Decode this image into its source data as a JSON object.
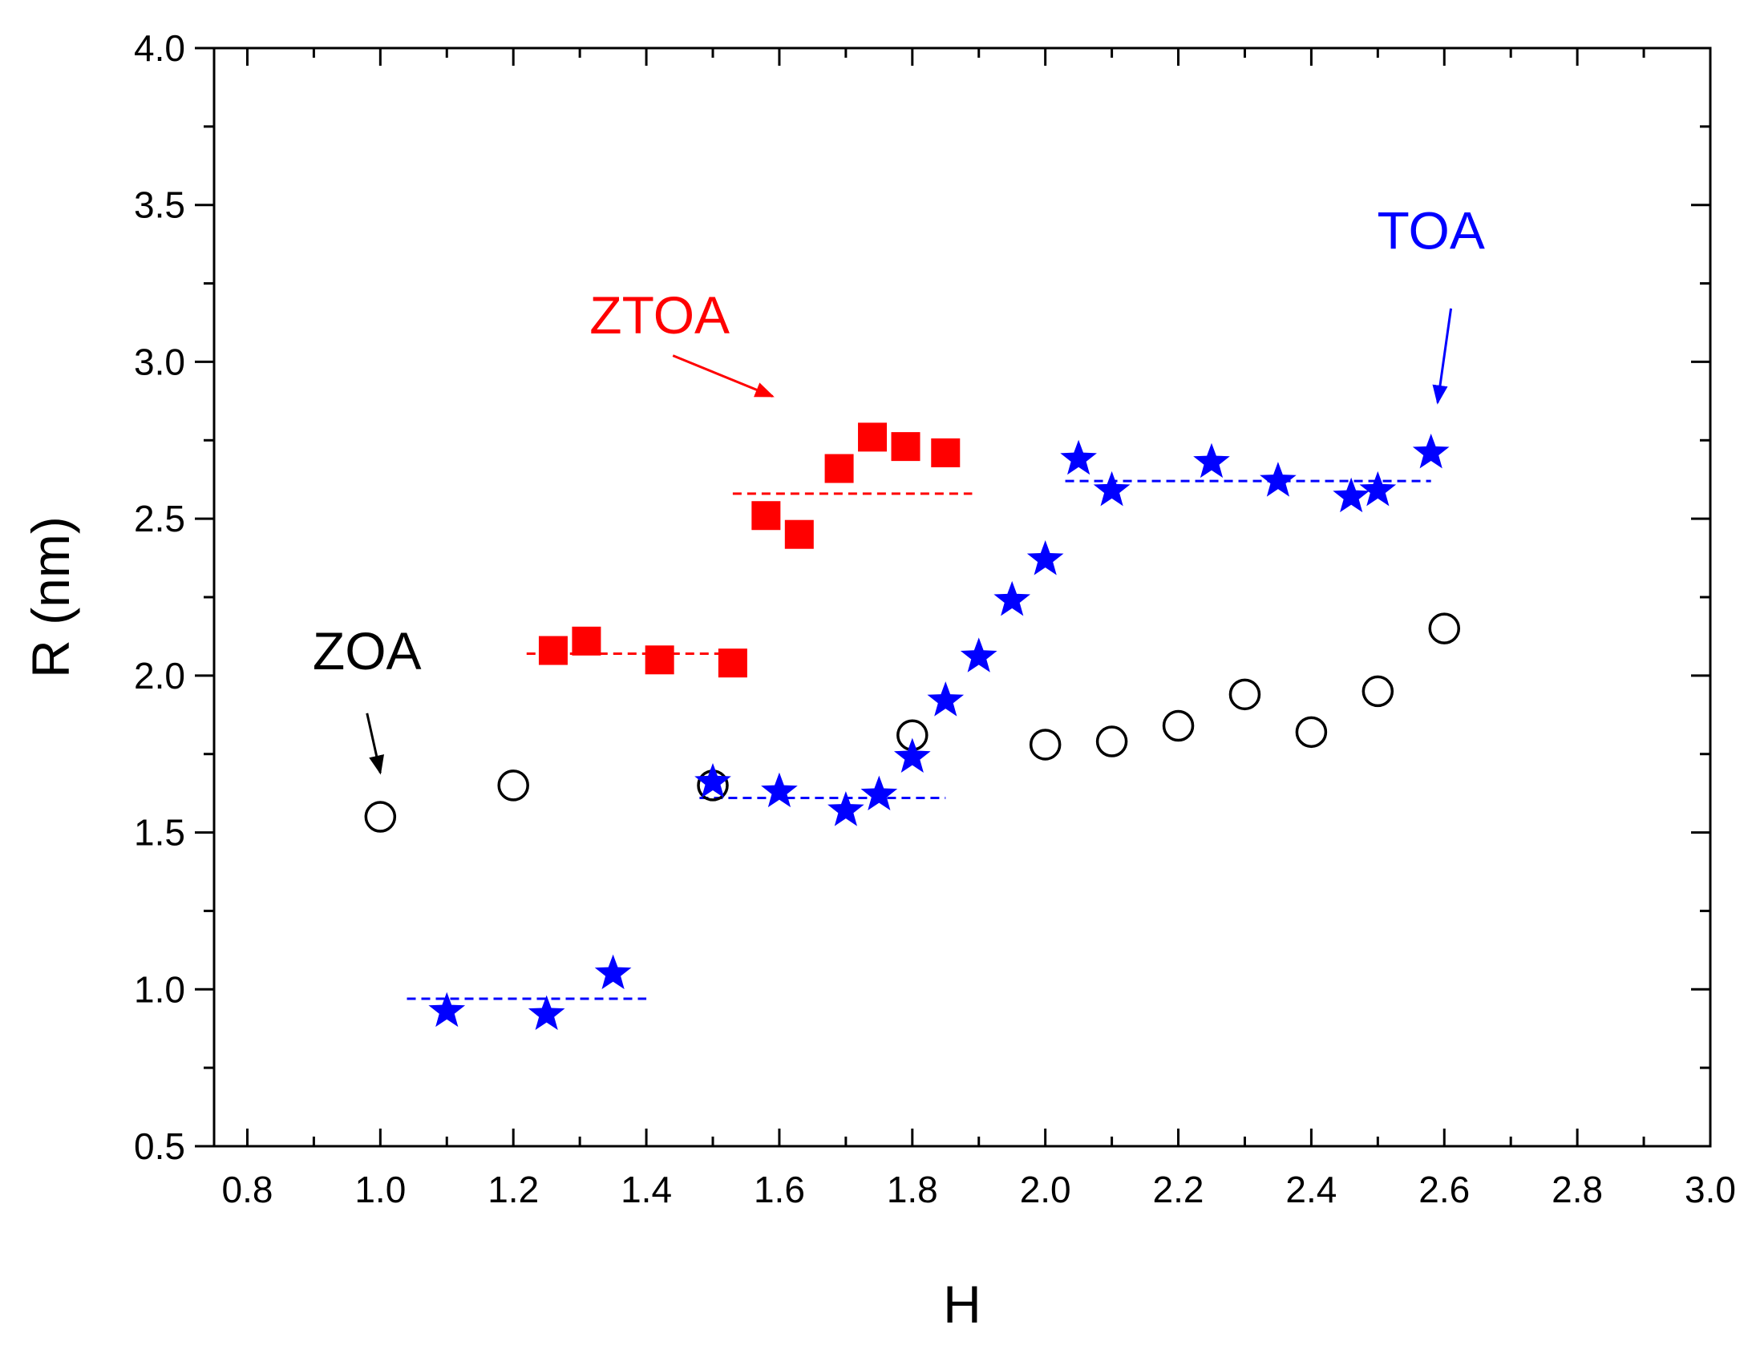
{
  "chart_data": {
    "type": "scatter",
    "title": "",
    "xlabel": "H",
    "ylabel": "R (nm)",
    "xlim": [
      0.75,
      3.0
    ],
    "ylim": [
      0.5,
      4.0
    ],
    "x_ticks": [
      0.8,
      1.0,
      1.2,
      1.4,
      1.6,
      1.8,
      2.0,
      2.2,
      2.4,
      2.6,
      2.8,
      3.0
    ],
    "x_tick_labels": [
      "0.8",
      "1.0",
      "1.2",
      "1.4",
      "1.6",
      "1.8",
      "2.0",
      "2.2",
      "2.4",
      "2.6",
      "2.8",
      "3.0"
    ],
    "y_ticks": [
      0.5,
      1.0,
      1.5,
      2.0,
      2.5,
      3.0,
      3.5,
      4.0
    ],
    "y_tick_labels": [
      "0.5",
      "1.0",
      "1.5",
      "2.0",
      "2.5",
      "3.0",
      "3.5",
      "4.0"
    ],
    "grid": false,
    "legend": "none",
    "series": [
      {
        "name": "ZOA",
        "marker": "open-circle",
        "color": "#000000",
        "x": [
          1.0,
          1.2,
          1.5,
          1.8,
          2.0,
          2.1,
          2.2,
          2.3,
          2.4,
          2.5,
          2.6
        ],
        "y": [
          1.55,
          1.65,
          1.65,
          1.81,
          1.78,
          1.79,
          1.84,
          1.94,
          1.82,
          1.95,
          2.15
        ]
      },
      {
        "name": "ZTOA",
        "marker": "filled-square",
        "color": "#ff0000",
        "x": [
          1.26,
          1.31,
          1.42,
          1.53,
          1.58,
          1.63,
          1.69,
          1.74,
          1.79,
          1.85
        ],
        "y": [
          2.08,
          2.11,
          2.05,
          2.04,
          2.51,
          2.45,
          2.66,
          2.76,
          2.73,
          2.71
        ]
      },
      {
        "name": "TOA",
        "marker": "filled-star",
        "color": "#0000ff",
        "x": [
          1.1,
          1.25,
          1.35,
          1.5,
          1.6,
          1.7,
          1.75,
          1.8,
          1.85,
          1.9,
          1.95,
          2.0,
          2.05,
          2.1,
          2.25,
          2.35,
          2.46,
          2.5,
          2.58
        ],
        "y": [
          0.93,
          0.92,
          1.05,
          1.66,
          1.63,
          1.57,
          1.62,
          1.74,
          1.92,
          2.06,
          2.24,
          2.37,
          2.69,
          2.59,
          2.68,
          2.62,
          2.57,
          2.59,
          2.71
        ]
      }
    ],
    "reference_lines": [
      {
        "series": "TOA",
        "color": "#0000ff",
        "x": [
          1.04,
          1.4
        ],
        "y": 0.97
      },
      {
        "series": "TOA",
        "color": "#0000ff",
        "x": [
          1.48,
          1.85
        ],
        "y": 1.61
      },
      {
        "series": "TOA",
        "color": "#0000ff",
        "x": [
          2.03,
          2.58
        ],
        "y": 2.62
      },
      {
        "series": "ZTOA",
        "color": "#ff0000",
        "x": [
          1.22,
          1.53
        ],
        "y": 2.07
      },
      {
        "series": "ZTOA",
        "color": "#ff0000",
        "x": [
          1.53,
          1.89
        ],
        "y": 2.58
      }
    ],
    "annotations": [
      {
        "text": "ZOA",
        "color": "#000000",
        "label_at": [
          0.98,
          2.02
        ],
        "arrow_from": [
          0.98,
          1.88
        ],
        "arrow_to": [
          1.0,
          1.69
        ]
      },
      {
        "text": "ZTOA",
        "color": "#ff0000",
        "label_at": [
          1.42,
          3.09
        ],
        "arrow_from": [
          1.44,
          3.02
        ],
        "arrow_to": [
          1.59,
          2.89
        ]
      },
      {
        "text": "TOA",
        "color": "#0000ff",
        "label_at": [
          2.58,
          3.36
        ],
        "arrow_from": [
          2.61,
          3.17
        ],
        "arrow_to": [
          2.59,
          2.87
        ]
      }
    ]
  }
}
